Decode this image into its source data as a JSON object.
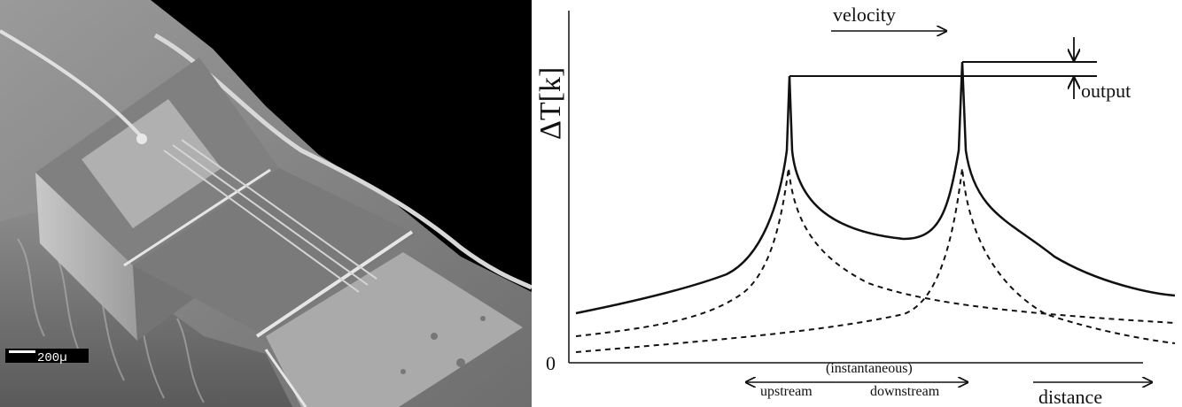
{
  "micrograph": {
    "scale_bar_text": "200µ"
  },
  "diagram": {
    "y_axis_label": "ΔT[k]",
    "origin_label": "0",
    "velocity_label": "velocity",
    "output_label": "output",
    "instantaneous_label": "(instantaneous)",
    "upstream_label": "upstream",
    "downstream_label": "downstream",
    "distance_label": "distance"
  }
}
